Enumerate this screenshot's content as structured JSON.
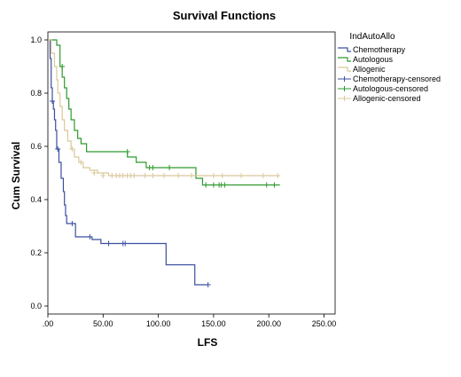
{
  "chart_data": {
    "type": "line",
    "subtype": "kaplan-meier step",
    "title": "Survival Functions",
    "xlabel": "LFS",
    "ylabel": "Cum Survival",
    "xlim": [
      0,
      260
    ],
    "ylim": [
      -0.03,
      1.03
    ],
    "x_ticks": [
      0,
      50,
      100,
      150,
      200,
      250
    ],
    "x_tick_labels": [
      ".00",
      "50.00",
      "100.00",
      "150.00",
      "200.00",
      "250.00"
    ],
    "y_ticks": [
      0,
      0.2,
      0.4,
      0.6,
      0.8,
      1.0
    ],
    "y_tick_labels": [
      "0.0",
      "0.2",
      "0.4",
      "0.6",
      "0.8",
      "1.0"
    ],
    "grid": false,
    "legend_title": "IndAutoAllo",
    "legend_position": "right",
    "colors": {
      "chemotherapy": "#3b4fa0",
      "autologous": "#2e9a2e",
      "allogenic": "#d9c89a"
    },
    "series": [
      {
        "name": "Chemotherapy",
        "color_key": "chemotherapy",
        "steps": [
          [
            0,
            1.0
          ],
          [
            2,
            0.93
          ],
          [
            3,
            0.82
          ],
          [
            4,
            0.77
          ],
          [
            5,
            0.74
          ],
          [
            6,
            0.7
          ],
          [
            7,
            0.66
          ],
          [
            8,
            0.59
          ],
          [
            10,
            0.54
          ],
          [
            12,
            0.48
          ],
          [
            14,
            0.43
          ],
          [
            15,
            0.38
          ],
          [
            16,
            0.34
          ],
          [
            17,
            0.31
          ],
          [
            25,
            0.26
          ],
          [
            40,
            0.25
          ],
          [
            48,
            0.235
          ],
          [
            107,
            0.155
          ],
          [
            133,
            0.08
          ],
          [
            145,
            0.08
          ]
        ],
        "censored": [
          [
            4,
            0.77
          ],
          [
            9,
            0.59
          ],
          [
            22,
            0.31
          ],
          [
            38,
            0.26
          ],
          [
            55,
            0.235
          ],
          [
            68,
            0.235
          ],
          [
            70,
            0.235
          ],
          [
            145,
            0.08
          ]
        ]
      },
      {
        "name": "Autologous",
        "color_key": "autologous",
        "steps": [
          [
            0,
            1.0
          ],
          [
            8,
            0.98
          ],
          [
            11,
            0.9
          ],
          [
            13,
            0.86
          ],
          [
            15,
            0.82
          ],
          [
            17,
            0.78
          ],
          [
            19,
            0.74
          ],
          [
            21,
            0.7
          ],
          [
            24,
            0.66
          ],
          [
            27,
            0.63
          ],
          [
            30,
            0.61
          ],
          [
            35,
            0.58
          ],
          [
            72,
            0.56
          ],
          [
            80,
            0.54
          ],
          [
            89,
            0.52
          ],
          [
            134,
            0.48
          ],
          [
            140,
            0.455
          ],
          [
            210,
            0.455
          ]
        ],
        "censored": [
          [
            13,
            0.9
          ],
          [
            72,
            0.58
          ],
          [
            92,
            0.52
          ],
          [
            95,
            0.52
          ],
          [
            110,
            0.52
          ],
          [
            143,
            0.455
          ],
          [
            150,
            0.455
          ],
          [
            155,
            0.455
          ],
          [
            157,
            0.455
          ],
          [
            160,
            0.455
          ],
          [
            198,
            0.455
          ],
          [
            205,
            0.455
          ]
        ]
      },
      {
        "name": "Allogenic",
        "color_key": "allogenic",
        "steps": [
          [
            0,
            1.0
          ],
          [
            3,
            0.95
          ],
          [
            6,
            0.9
          ],
          [
            8,
            0.85
          ],
          [
            9,
            0.8
          ],
          [
            11,
            0.75
          ],
          [
            13,
            0.7
          ],
          [
            15,
            0.66
          ],
          [
            18,
            0.62
          ],
          [
            21,
            0.59
          ],
          [
            24,
            0.56
          ],
          [
            28,
            0.54
          ],
          [
            32,
            0.52
          ],
          [
            38,
            0.51
          ],
          [
            45,
            0.5
          ],
          [
            55,
            0.49
          ],
          [
            210,
            0.49
          ]
        ],
        "censored": [
          [
            22,
            0.59
          ],
          [
            30,
            0.54
          ],
          [
            42,
            0.5
          ],
          [
            50,
            0.49
          ],
          [
            58,
            0.49
          ],
          [
            62,
            0.49
          ],
          [
            65,
            0.49
          ],
          [
            68,
            0.49
          ],
          [
            72,
            0.49
          ],
          [
            75,
            0.49
          ],
          [
            78,
            0.49
          ],
          [
            88,
            0.49
          ],
          [
            95,
            0.49
          ],
          [
            105,
            0.49
          ],
          [
            118,
            0.49
          ],
          [
            130,
            0.49
          ],
          [
            150,
            0.49
          ],
          [
            158,
            0.49
          ],
          [
            175,
            0.49
          ],
          [
            195,
            0.49
          ],
          [
            208,
            0.49
          ]
        ]
      }
    ],
    "legend_items": [
      {
        "label": "Chemotherapy",
        "color_key": "chemotherapy",
        "marker": "line"
      },
      {
        "label": "Autologous",
        "color_key": "autologous",
        "marker": "line"
      },
      {
        "label": "Allogenic",
        "color_key": "allogenic",
        "marker": "line"
      },
      {
        "label": "Chemotherapy-censored",
        "color_key": "chemotherapy",
        "marker": "plus"
      },
      {
        "label": "Autologous-censored",
        "color_key": "autologous",
        "marker": "plus"
      },
      {
        "label": "Allogenic-censored",
        "color_key": "allogenic",
        "marker": "plus"
      }
    ]
  }
}
